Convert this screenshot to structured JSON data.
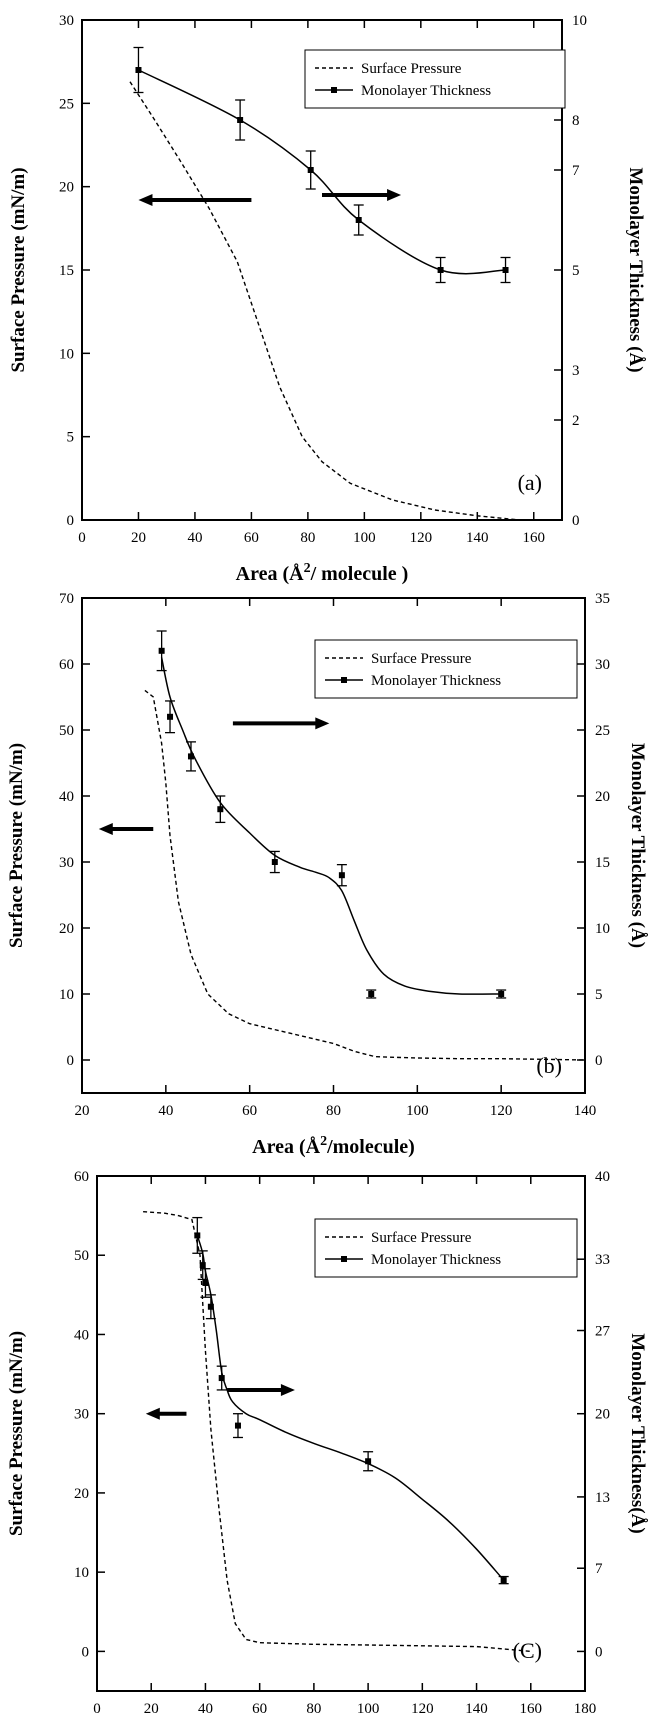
{
  "chart_data": [
    {
      "type": "line",
      "xlabel": "Area (Å²/ molecule )",
      "ylabel": "Surface Pressure (mN/m)",
      "y2label": "Monolayer Thickness (Å)",
      "xlim": [
        0,
        170
      ],
      "ylim": [
        0,
        30
      ],
      "y2lim": [
        0,
        10
      ],
      "xticks": [
        "0",
        "20",
        "40",
        "60",
        "80",
        "100",
        "120",
        "140",
        "160"
      ],
      "yticks": [
        "0",
        "5",
        "10",
        "15",
        "20",
        "25",
        "30"
      ],
      "y2ticks": [
        "0",
        "2",
        "3",
        "5",
        "7",
        "8",
        "10"
      ],
      "panel_label": "(a)",
      "legend_position": "top-right",
      "grid": false,
      "series": [
        {
          "name": "Surface Pressure",
          "axis": "left",
          "style": "dashed",
          "x": [
            17,
            25,
            35,
            45,
            55,
            62,
            70,
            78,
            85,
            95,
            110,
            125,
            140,
            155
          ],
          "y": [
            26.3,
            24.2,
            21.5,
            18.7,
            15.5,
            12.0,
            8.0,
            5.0,
            3.5,
            2.2,
            1.2,
            0.6,
            0.25,
            0
          ]
        },
        {
          "name": "Monolayer Thickness",
          "axis": "right",
          "style": "solid-markers",
          "x": [
            20,
            56,
            81,
            98,
            127,
            150
          ],
          "y": [
            9.0,
            8.0,
            7.0,
            6.0,
            5.0,
            5.0
          ],
          "err": [
            0.45,
            0.4,
            0.38,
            0.3,
            0.25,
            0.25
          ]
        }
      ],
      "annotations": [
        {
          "type": "arrow",
          "direction": "left",
          "x1": 60,
          "x2": 20,
          "y": 19.2,
          "axis": "left"
        },
        {
          "type": "arrow",
          "direction": "right",
          "x1": 85,
          "x2": 113,
          "y": 6.5,
          "axis": "right"
        }
      ]
    },
    {
      "type": "line",
      "xlabel": "Area (Å²/molecule)",
      "ylabel": "Surface Pressure (mN/m)",
      "y2label": "Monolayer Thickness (Å)",
      "xlim": [
        20,
        140
      ],
      "ylim": [
        -5,
        70
      ],
      "y2lim": [
        -2.5,
        35
      ],
      "xticks": [
        "20",
        "40",
        "60",
        "80",
        "100",
        "120",
        "140"
      ],
      "yticks": [
        "0",
        "10",
        "20",
        "30",
        "40",
        "50",
        "60",
        "70"
      ],
      "y2ticks": [
        "0",
        "5",
        "10",
        "15",
        "20",
        "25",
        "30",
        "35"
      ],
      "panel_label": "(b)",
      "legend_position": "top-right",
      "grid": false,
      "series": [
        {
          "name": "Surface Pressure",
          "axis": "left",
          "style": "dashed",
          "x": [
            35,
            37,
            39,
            40,
            41,
            43,
            46,
            50,
            55,
            60,
            70,
            80,
            85,
            90,
            100,
            110,
            120,
            130,
            140
          ],
          "y": [
            56,
            55,
            48,
            42,
            34,
            24,
            16,
            10,
            7,
            5.5,
            4,
            2.5,
            1.3,
            0.5,
            0.3,
            0.2,
            0.2,
            0.1,
            0
          ]
        },
        {
          "name": "Monolayer Thickness",
          "axis": "right",
          "style": "solid-markers",
          "x": [
            39,
            41,
            46,
            53,
            66,
            82,
            89,
            120
          ],
          "y": [
            31,
            26,
            23,
            19,
            15,
            14,
            5,
            5
          ],
          "err": [
            1.5,
            1.2,
            1.1,
            1.0,
            0.8,
            0.8,
            0.3,
            0.3
          ],
          "fit_x": [
            39,
            41,
            44,
            47,
            53,
            60,
            66,
            72,
            76,
            79,
            82,
            85,
            88,
            92,
            97,
            103,
            110,
            120
          ],
          "fit_y": [
            30.5,
            27.5,
            25,
            22.8,
            19.5,
            17.2,
            15.5,
            14.6,
            14.2,
            13.8,
            12.8,
            10.5,
            8.3,
            6.5,
            5.6,
            5.2,
            5.0,
            5.0
          ]
        }
      ],
      "annotations": [
        {
          "type": "arrow",
          "direction": "left",
          "x1": 37,
          "x2": 24,
          "y": 35,
          "axis": "left"
        },
        {
          "type": "arrow",
          "direction": "right",
          "x1": 56,
          "x2": 79,
          "y": 25.5,
          "axis": "right"
        }
      ]
    },
    {
      "type": "line",
      "xlabel": "Area (Å²/molecule)",
      "ylabel": "Surface Pressure (mN/m)",
      "y2label": "Monolayer Thickness(Å)",
      "xlim": [
        0,
        180
      ],
      "ylim": [
        -5,
        60
      ],
      "y2lim": [
        -3.33,
        40
      ],
      "xticks": [
        "0",
        "20",
        "40",
        "60",
        "80",
        "100",
        "120",
        "140",
        "160",
        "180"
      ],
      "yticks": [
        "0",
        "10",
        "20",
        "30",
        "40",
        "50",
        "60"
      ],
      "y2ticks": [
        "0",
        "7",
        "13",
        "20",
        "27",
        "33",
        "40"
      ],
      "panel_label": "(C)",
      "legend_position": "top-right",
      "grid": false,
      "series": [
        {
          "name": "Surface Pressure",
          "axis": "left",
          "style": "dashed",
          "x": [
            17,
            25,
            30,
            35,
            38,
            40,
            42,
            45,
            48,
            51,
            55,
            60,
            80,
            100,
            120,
            140,
            160
          ],
          "y": [
            55.5,
            55.3,
            55,
            54.5,
            50,
            38,
            28,
            18,
            9,
            3.5,
            1.5,
            1.1,
            0.9,
            0.8,
            0.7,
            0.6,
            0
          ]
        },
        {
          "name": "Monolayer Thickness",
          "axis": "right",
          "style": "solid-markers",
          "x": [
            37,
            39,
            40,
            42,
            46,
            52,
            100,
            150
          ],
          "y": [
            35,
            32.5,
            31,
            29,
            23,
            19,
            16,
            6
          ],
          "err": [
            1.5,
            1.2,
            1.2,
            1.0,
            1.0,
            1.0,
            0.8,
            0.3
          ],
          "fit_x": [
            37,
            39,
            40,
            42,
            44,
            46,
            48,
            50,
            55,
            60,
            70,
            80,
            90,
            100,
            110,
            120,
            130,
            140,
            150
          ],
          "fit_y": [
            35,
            33.5,
            32,
            30,
            27,
            23.5,
            22,
            21,
            20,
            19.5,
            18.4,
            17.5,
            16.7,
            15.8,
            14.6,
            12.8,
            10.9,
            8.6,
            6
          ]
        }
      ],
      "annotations": [
        {
          "type": "arrow",
          "direction": "left",
          "x1": 33,
          "x2": 18,
          "y": 30,
          "axis": "left"
        },
        {
          "type": "arrow",
          "direction": "right",
          "x1": 48,
          "x2": 73,
          "y": 22,
          "axis": "right"
        }
      ]
    }
  ]
}
